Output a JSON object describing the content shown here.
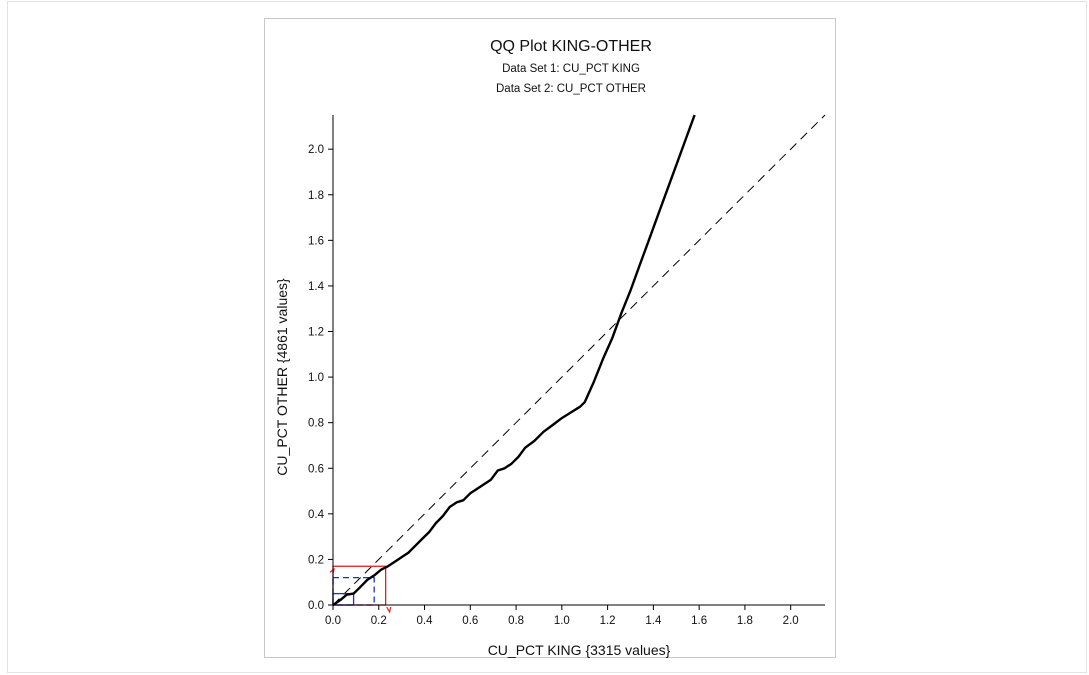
{
  "chart_data": {
    "type": "line",
    "title": "QQ Plot  KING-OTHER",
    "subtitle_lines": [
      "Data Set 1: CU_PCT KING",
      "Data Set 2: CU_PCT OTHER"
    ],
    "xlabel": "CU_PCT KING {3315 values}",
    "ylabel": "CU_PCT OTHER {4861 values}",
    "xlim": [
      0.0,
      2.15
    ],
    "ylim": [
      0.0,
      2.15
    ],
    "x_ticks": [
      0.0,
      0.2,
      0.4,
      0.6,
      0.8,
      1.0,
      1.2,
      1.4,
      1.6,
      1.8,
      2.0
    ],
    "y_ticks": [
      0.0,
      0.2,
      0.4,
      0.6,
      0.8,
      1.0,
      1.2,
      1.4,
      1.6,
      1.8,
      2.0
    ],
    "x_tick_labels": [
      "0.0",
      "0.2",
      "0.4",
      "0.6",
      "0.8",
      "1.0",
      "1.2",
      "1.4",
      "1.6",
      "1.8",
      "2.0"
    ],
    "y_tick_labels": [
      "0.0",
      "0.2",
      "0.4",
      "0.6",
      "0.8",
      "1.0",
      "1.2",
      "1.4",
      "1.6",
      "1.8",
      "2.0"
    ],
    "grid": false,
    "reference_line": {
      "style": "dashed",
      "color": "#000000",
      "from": [
        0.0,
        0.0
      ],
      "to": [
        2.15,
        2.15
      ]
    },
    "series": [
      {
        "color": "#000000",
        "x": [
          0.0,
          0.03,
          0.06,
          0.09,
          0.12,
          0.15,
          0.18,
          0.21,
          0.24,
          0.27,
          0.3,
          0.33,
          0.36,
          0.39,
          0.42,
          0.45,
          0.48,
          0.51,
          0.54,
          0.57,
          0.6,
          0.63,
          0.66,
          0.69,
          0.72,
          0.75,
          0.78,
          0.81,
          0.84,
          0.88,
          0.92,
          0.96,
          1.0,
          1.04,
          1.08,
          1.1,
          1.14,
          1.18,
          1.22,
          1.26,
          1.3,
          1.34,
          1.38,
          1.42,
          1.46,
          1.5,
          1.54,
          1.58
        ],
        "y": [
          0.0,
          0.02,
          0.045,
          0.05,
          0.08,
          0.11,
          0.13,
          0.155,
          0.17,
          0.19,
          0.21,
          0.23,
          0.26,
          0.29,
          0.32,
          0.36,
          0.39,
          0.43,
          0.45,
          0.46,
          0.49,
          0.51,
          0.53,
          0.55,
          0.59,
          0.6,
          0.62,
          0.65,
          0.69,
          0.72,
          0.76,
          0.79,
          0.82,
          0.845,
          0.87,
          0.89,
          0.98,
          1.08,
          1.17,
          1.28,
          1.38,
          1.49,
          1.6,
          1.71,
          1.82,
          1.93,
          2.04,
          2.15
        ]
      }
    ],
    "zoom_boxes": [
      {
        "color": "#e02020",
        "x_max": 0.23,
        "y_max": 0.17
      },
      {
        "color": "#2030d0",
        "x_max": 0.18,
        "y_max": 0.12,
        "dashed": true
      },
      {
        "color": "#2030d0",
        "x_max": 0.09,
        "y_max": 0.05
      }
    ]
  }
}
